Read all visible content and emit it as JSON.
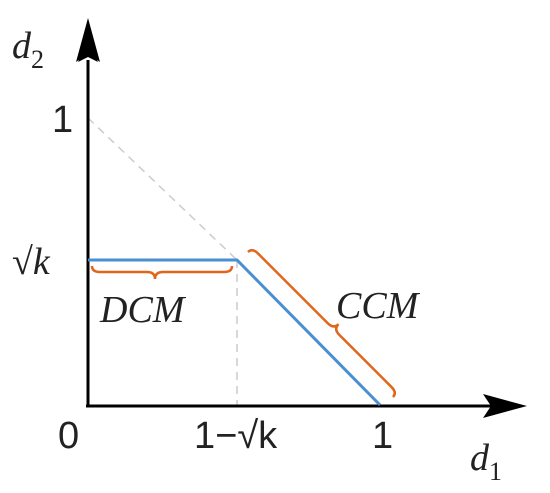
{
  "axes": {
    "x_label": "d",
    "x_subscript": "1",
    "y_label": "d",
    "y_subscript": "2"
  },
  "x_ticks": {
    "origin": "0",
    "knee": "1−√k",
    "one": "1"
  },
  "y_ticks": {
    "knee": "√k",
    "one": "1"
  },
  "regions": {
    "left": "DCM",
    "right": "CCM"
  }
}
